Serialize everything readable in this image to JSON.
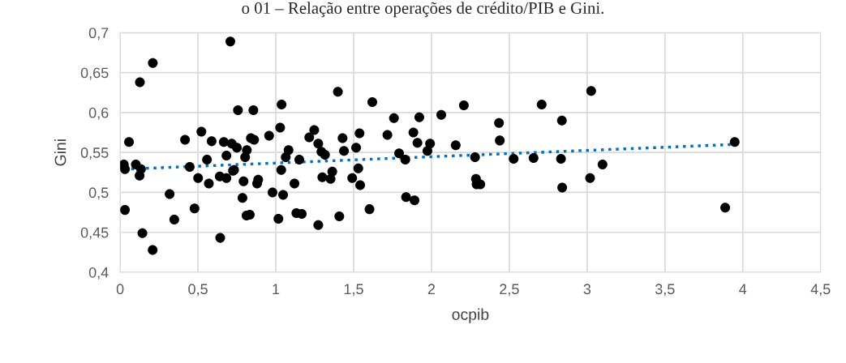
{
  "chart_data": {
    "type": "scatter",
    "title": "o 01 – Relação entre operações de crédito/PIB e Gini.",
    "xlabel": "ocpib",
    "ylabel": "Gini",
    "xlim": [
      0,
      4.5
    ],
    "xticks": [
      {
        "value": 0,
        "label": "0"
      },
      {
        "value": 0.5,
        "label": "0,5"
      },
      {
        "value": 1,
        "label": "1"
      },
      {
        "value": 1.5,
        "label": "1,5"
      },
      {
        "value": 2,
        "label": "2"
      },
      {
        "value": 2.5,
        "label": "2,5"
      },
      {
        "value": 3,
        "label": "3"
      },
      {
        "value": 3.5,
        "label": "3,5"
      },
      {
        "value": 4,
        "label": "4"
      },
      {
        "value": 4.5,
        "label": "4,5"
      }
    ],
    "ylim": [
      0.4,
      0.7
    ],
    "yticks": [
      {
        "value": 0.4,
        "label": "0,4"
      },
      {
        "value": 0.45,
        "label": "0,45"
      },
      {
        "value": 0.5,
        "label": "0,5"
      },
      {
        "value": 0.55,
        "label": "0,55"
      },
      {
        "value": 0.6,
        "label": "0,6"
      },
      {
        "value": 0.65,
        "label": "0,65"
      },
      {
        "value": 0.7,
        "label": "0,7"
      }
    ],
    "grid": true,
    "legend": false,
    "series": [
      {
        "color": "#000000",
        "marker": "circle",
        "x": [
          0.708,
          0.21,
          0.127,
          1.037,
          0.757,
          0.856,
          1.028,
          0.522,
          0.957,
          0.057,
          0.417,
          0.588,
          0.666,
          0.717,
          0.75,
          0.84,
          0.861,
          0.814,
          0.683,
          0.803,
          0.558,
          0.024,
          0.031,
          0.101,
          0.134,
          0.125,
          0.447,
          0.725,
          0.732,
          0.501,
          0.64,
          0.683,
          0.793,
          0.887,
          0.88,
          0.57,
          1.035,
          0.318,
          0.979,
          1.047,
          0.786,
          0.031,
          0.478,
          0.348,
          0.812,
          0.833,
          1.017,
          0.143,
          0.643,
          0.209,
          1.399,
          1.62,
          2.208,
          1.759,
          1.922,
          2.063,
          2.434,
          1.247,
          1.215,
          1.429,
          1.538,
          1.717,
          1.884,
          1.273,
          1.91,
          1.991,
          2.156,
          2.439,
          1.082,
          1.293,
          1.316,
          1.438,
          1.516,
          1.974,
          1.064,
          1.151,
          1.792,
          1.832,
          2.28,
          2.528,
          2.656,
          2.832,
          1.363,
          1.53,
          1.299,
          1.352,
          1.491,
          1.542,
          1.12,
          2.286,
          2.29,
          2.314,
          2.84,
          1.837,
          1.891,
          1.602,
          1.132,
          1.167,
          1.408,
          1.273,
          2.708,
          2.838,
          3.026,
          3.948,
          3.099,
          3.019,
          3.887
        ],
        "values": [
          0.689,
          0.662,
          0.638,
          0.61,
          0.603,
          0.603,
          0.581,
          0.576,
          0.571,
          0.563,
          0.566,
          0.564,
          0.563,
          0.561,
          0.556,
          0.568,
          0.566,
          0.553,
          0.546,
          0.544,
          0.541,
          0.535,
          0.529,
          0.535,
          0.529,
          0.521,
          0.532,
          0.527,
          0.528,
          0.518,
          0.52,
          0.518,
          0.514,
          0.516,
          0.511,
          0.511,
          0.528,
          0.498,
          0.5,
          0.497,
          0.493,
          0.478,
          0.48,
          0.466,
          0.471,
          0.472,
          0.467,
          0.449,
          0.443,
          0.428,
          0.626,
          0.613,
          0.609,
          0.593,
          0.594,
          0.597,
          0.587,
          0.578,
          0.569,
          0.568,
          0.574,
          0.572,
          0.575,
          0.561,
          0.562,
          0.561,
          0.559,
          0.565,
          0.553,
          0.551,
          0.547,
          0.552,
          0.556,
          0.552,
          0.544,
          0.541,
          0.549,
          0.541,
          0.544,
          0.542,
          0.543,
          0.542,
          0.526,
          0.53,
          0.519,
          0.517,
          0.518,
          0.509,
          0.511,
          0.517,
          0.51,
          0.51,
          0.506,
          0.494,
          0.49,
          0.479,
          0.474,
          0.473,
          0.47,
          0.459,
          0.61,
          0.59,
          0.627,
          0.563,
          0.535,
          0.518,
          0.481
        ]
      },
      {
        "type": "line",
        "color": "#0070c0",
        "line_style": "dotted",
        "x": [
          0.023,
          3.934
        ],
        "values": [
          0.529,
          0.56
        ]
      }
    ]
  }
}
